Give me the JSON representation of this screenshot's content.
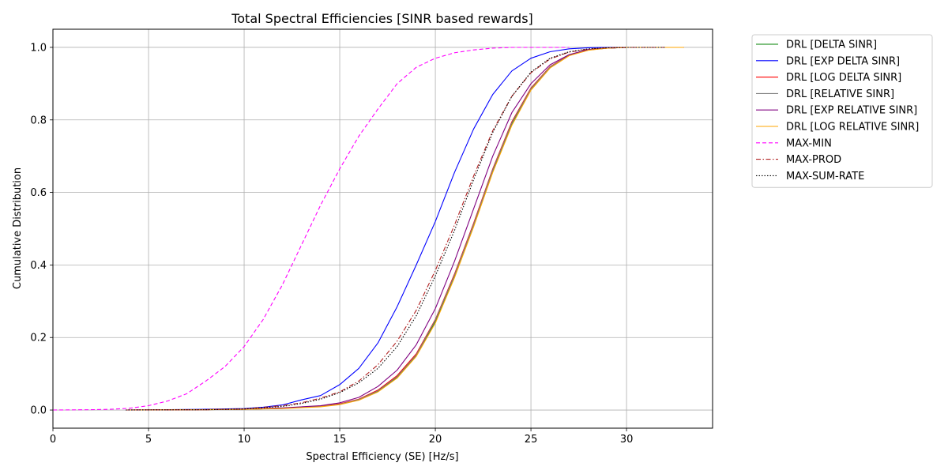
{
  "chart_data": {
    "type": "line",
    "title": "Total Spectral Efficiencies [SINR based rewards]",
    "xlabel": "Spectral Efficiency (SE) [Hz/s]",
    "ylabel": "Cumulative Distribution",
    "xlim": [
      0,
      34.5
    ],
    "ylim": [
      -0.05,
      1.05
    ],
    "xticks": [
      "0",
      "5",
      "10",
      "15",
      "20",
      "25",
      "30"
    ],
    "yticks": [
      "0.0",
      "0.2",
      "0.4",
      "0.6",
      "0.8",
      "1.0"
    ],
    "grid": true,
    "legend_position": "outside-top-right",
    "series": [
      {
        "name": "DRL [DELTA SINR]",
        "color": "#008000",
        "dash": "solid",
        "x": [
          3.8,
          8,
          10,
          12,
          14,
          15,
          16,
          17,
          18,
          19,
          20,
          21,
          22,
          23,
          24,
          25,
          26,
          27,
          28,
          29,
          30,
          33
        ],
        "y": [
          0,
          0.001,
          0.002,
          0.005,
          0.01,
          0.016,
          0.028,
          0.052,
          0.09,
          0.15,
          0.245,
          0.37,
          0.51,
          0.66,
          0.79,
          0.885,
          0.945,
          0.978,
          0.993,
          0.998,
          1.0,
          1.0
        ]
      },
      {
        "name": "DRL [EXP DELTA SINR]",
        "color": "#0000ff",
        "dash": "solid",
        "x": [
          3.8,
          8,
          10,
          11,
          12,
          13,
          14,
          15,
          16,
          17,
          18,
          19,
          20,
          21,
          22,
          23,
          24,
          25,
          26,
          27,
          28,
          29,
          30,
          31
        ],
        "y": [
          0,
          0.002,
          0.004,
          0.008,
          0.014,
          0.028,
          0.04,
          0.07,
          0.115,
          0.185,
          0.285,
          0.4,
          0.52,
          0.655,
          0.775,
          0.87,
          0.935,
          0.97,
          0.988,
          0.996,
          0.999,
          1.0,
          1.0,
          1.0
        ]
      },
      {
        "name": "DRL [LOG DELTA SINR]",
        "color": "#ff0000",
        "dash": "solid",
        "x": [
          3.8,
          8,
          10,
          12,
          14,
          15,
          16,
          17,
          18,
          19,
          20,
          21,
          22,
          23,
          24,
          25,
          26,
          27,
          28,
          29,
          30,
          33
        ],
        "y": [
          0,
          0.001,
          0.002,
          0.005,
          0.011,
          0.017,
          0.03,
          0.055,
          0.095,
          0.155,
          0.25,
          0.375,
          0.515,
          0.665,
          0.795,
          0.888,
          0.947,
          0.979,
          0.993,
          0.998,
          1.0,
          1.0
        ]
      },
      {
        "name": "DRL [RELATIVE SINR]",
        "color": "#808080",
        "dash": "solid",
        "x": [
          3.8,
          8,
          10,
          12,
          14,
          15,
          16,
          17,
          18,
          19,
          20,
          21,
          22,
          23,
          24,
          25,
          26,
          27,
          28,
          29,
          30,
          33
        ],
        "y": [
          0,
          0.001,
          0.002,
          0.005,
          0.01,
          0.016,
          0.029,
          0.053,
          0.092,
          0.152,
          0.248,
          0.372,
          0.512,
          0.662,
          0.792,
          0.886,
          0.946,
          0.978,
          0.993,
          0.998,
          1.0,
          1.0
        ]
      },
      {
        "name": "DRL [EXP RELATIVE SINR]",
        "color": "#800080",
        "dash": "solid",
        "x": [
          3.8,
          8,
          10,
          12,
          14,
          15,
          16,
          17,
          18,
          19,
          20,
          21,
          22,
          23,
          24,
          25,
          26,
          27,
          28,
          29,
          30,
          32
        ],
        "y": [
          0,
          0.001,
          0.003,
          0.006,
          0.012,
          0.02,
          0.035,
          0.065,
          0.11,
          0.18,
          0.28,
          0.41,
          0.555,
          0.7,
          0.82,
          0.9,
          0.952,
          0.98,
          0.994,
          0.998,
          1.0,
          1.0
        ]
      },
      {
        "name": "DRL [LOG RELATIVE SINR]",
        "color": "#ffa500",
        "dash": "solid",
        "x": [
          3.8,
          8,
          10,
          12,
          14,
          15,
          16,
          17,
          18,
          19,
          20,
          21,
          22,
          23,
          24,
          25,
          26,
          27,
          28,
          29,
          30,
          33
        ],
        "y": [
          0,
          0.001,
          0.002,
          0.004,
          0.009,
          0.015,
          0.027,
          0.05,
          0.088,
          0.148,
          0.24,
          0.365,
          0.505,
          0.655,
          0.785,
          0.882,
          0.943,
          0.977,
          0.992,
          0.998,
          1.0,
          1.0
        ]
      },
      {
        "name": "MAX-MIN",
        "color": "#ff00ff",
        "dash": "dashed",
        "x": [
          0,
          2,
          3,
          4,
          5,
          6,
          7,
          8,
          9,
          10,
          11,
          12,
          13,
          14,
          15,
          16,
          17,
          18,
          19,
          20,
          21,
          22,
          23,
          24,
          25,
          27
        ],
        "y": [
          0,
          0.001,
          0.002,
          0.005,
          0.012,
          0.025,
          0.045,
          0.08,
          0.12,
          0.175,
          0.25,
          0.345,
          0.455,
          0.565,
          0.665,
          0.755,
          0.83,
          0.9,
          0.945,
          0.97,
          0.985,
          0.993,
          0.998,
          1.0,
          1.0,
          1.0
        ]
      },
      {
        "name": "MAX-PROD",
        "color": "#b22222",
        "dash": "dashdot",
        "x": [
          3.8,
          8,
          10,
          12,
          13,
          14,
          15,
          16,
          17,
          18,
          19,
          20,
          21,
          22,
          23,
          24,
          25,
          26,
          27,
          28,
          29,
          30,
          32
        ],
        "y": [
          0,
          0.001,
          0.003,
          0.012,
          0.02,
          0.033,
          0.05,
          0.08,
          0.125,
          0.19,
          0.275,
          0.385,
          0.51,
          0.645,
          0.77,
          0.865,
          0.93,
          0.968,
          0.987,
          0.995,
          0.999,
          1.0,
          1.0
        ]
      },
      {
        "name": "MAX-SUM-RATE",
        "color": "#000000",
        "dash": "dotted",
        "x": [
          3.8,
          8,
          10,
          12,
          13,
          14,
          15,
          16,
          17,
          18,
          19,
          20,
          21,
          22,
          23,
          24,
          25,
          26,
          27,
          28,
          29,
          30,
          32
        ],
        "y": [
          0,
          0.001,
          0.003,
          0.01,
          0.018,
          0.03,
          0.048,
          0.075,
          0.115,
          0.175,
          0.26,
          0.37,
          0.495,
          0.635,
          0.765,
          0.865,
          0.932,
          0.97,
          0.988,
          0.996,
          0.999,
          1.0,
          1.0
        ]
      }
    ]
  }
}
